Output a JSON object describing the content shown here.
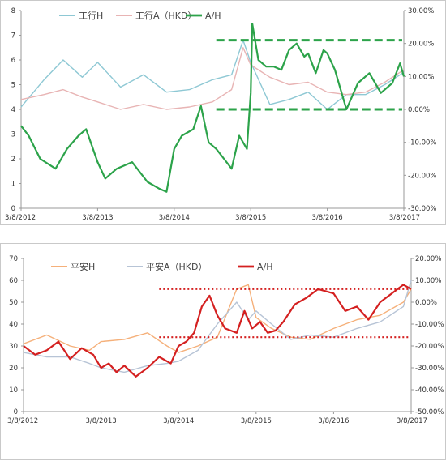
{
  "chart_data": [
    {
      "type": "line",
      "x_ticks": [
        "3/8/2012",
        "3/8/2013",
        "3/8/2014",
        "3/8/2015",
        "3/8/2016",
        "3/8/2017"
      ],
      "y_left": {
        "range": [
          0,
          8
        ],
        "ticks": [
          "0",
          "1",
          "2",
          "3",
          "4",
          "5",
          "6",
          "7",
          "8"
        ]
      },
      "y_right": {
        "range": [
          -30,
          30
        ],
        "ticks": [
          "-30.00%",
          "-20.00%",
          "-10.00%",
          "0.00%",
          "10.00%",
          "20.00%",
          "30.00%"
        ]
      },
      "legend_position": "top-left",
      "series": [
        {
          "name": "工行H",
          "axis": "left",
          "color": "#8ec8d4",
          "x": [
            2012.0,
            2012.3,
            2012.55,
            2012.8,
            2013.0,
            2013.3,
            2013.6,
            2013.9,
            2014.2,
            2014.5,
            2014.75,
            2014.9,
            2015.0,
            2015.25,
            2015.5,
            2015.75,
            2016.0,
            2016.25,
            2016.5,
            2016.75,
            2017.0
          ],
          "values": [
            4.1,
            5.2,
            6.0,
            5.3,
            5.9,
            4.9,
            5.4,
            4.7,
            4.8,
            5.2,
            5.4,
            6.8,
            5.9,
            4.2,
            4.4,
            4.7,
            4.0,
            4.6,
            4.6,
            5.0,
            5.5
          ]
        },
        {
          "name": "工行A（HKD）",
          "axis": "left",
          "color": "#e8b4b4",
          "x": [
            2012.0,
            2012.3,
            2012.55,
            2012.8,
            2013.0,
            2013.3,
            2013.6,
            2013.9,
            2014.2,
            2014.5,
            2014.75,
            2014.9,
            2015.0,
            2015.25,
            2015.5,
            2015.75,
            2016.0,
            2016.25,
            2016.5,
            2016.75,
            2017.0
          ],
          "values": [
            4.4,
            4.6,
            4.8,
            4.5,
            4.3,
            4.0,
            4.2,
            4.0,
            4.1,
            4.3,
            4.8,
            6.5,
            5.8,
            5.3,
            5.0,
            5.1,
            4.7,
            4.6,
            4.7,
            5.1,
            5.6
          ]
        },
        {
          "name": "A/H",
          "axis": "right",
          "color": "#2ca34a",
          "x": [
            2012.0,
            2012.1,
            2012.25,
            2012.45,
            2012.6,
            2012.75,
            2012.85,
            2013.0,
            2013.1,
            2013.25,
            2013.45,
            2013.65,
            2013.8,
            2013.9,
            2014.0,
            2014.1,
            2014.25,
            2014.35,
            2014.45,
            2014.55,
            2014.65,
            2014.75,
            2014.85,
            2014.95,
            2015.0,
            2015.02,
            2015.1,
            2015.2,
            2015.3,
            2015.4,
            2015.5,
            2015.6,
            2015.7,
            2015.75,
            2015.85,
            2015.95,
            2016.0,
            2016.1,
            2016.25,
            2016.4,
            2016.55,
            2016.7,
            2016.85,
            2016.95,
            2017.0
          ],
          "values": [
            -5,
            -8,
            -15,
            -18,
            -12,
            -8,
            -6,
            -16,
            -21,
            -18,
            -16,
            -22,
            -24,
            -25,
            -12,
            -8,
            -6,
            1,
            -10,
            -12,
            -15,
            -18,
            -8,
            -12,
            5,
            26,
            15,
            13,
            13,
            12,
            18,
            20,
            16,
            17,
            11,
            18,
            17,
            12,
            0,
            8,
            11,
            5,
            8,
            14,
            10
          ]
        }
      ],
      "reference_lines": [
        {
          "axis": "right",
          "value": 21,
          "color": "#2ca34a",
          "style": "dashed"
        },
        {
          "axis": "right",
          "value": 0,
          "color": "#2ca34a",
          "style": "dashed"
        }
      ]
    },
    {
      "type": "line",
      "x_ticks": [
        "3/8/2012",
        "3/8/2013",
        "3/8/2014",
        "3/8/2015",
        "3/8/2016",
        "3/8/2017"
      ],
      "y_left": {
        "range": [
          0,
          70
        ],
        "ticks": [
          "0",
          "10",
          "20",
          "30",
          "40",
          "50",
          "60",
          "70"
        ]
      },
      "y_right": {
        "range": [
          -50,
          20
        ],
        "ticks": [
          "-50.00%",
          "-40.00%",
          "-30.00%",
          "-20.00%",
          "-10.00%",
          "0.00%",
          "10.00%",
          "20.00%"
        ]
      },
      "legend_position": "top-left",
      "series": [
        {
          "name": "平安H",
          "axis": "left",
          "color": "#f5b07a",
          "x": [
            2012.0,
            2012.3,
            2012.6,
            2012.85,
            2013.0,
            2013.3,
            2013.6,
            2013.85,
            2014.0,
            2014.25,
            2014.5,
            2014.75,
            2014.9,
            2015.0,
            2015.2,
            2015.45,
            2015.7,
            2016.0,
            2016.3,
            2016.6,
            2016.9,
            2017.0
          ],
          "values": [
            31,
            35,
            30,
            28,
            32,
            33,
            36,
            30,
            27,
            30,
            34,
            56,
            58,
            43,
            38,
            34,
            33,
            38,
            42,
            44,
            50,
            56
          ]
        },
        {
          "name": "平安A（HKD）",
          "axis": "left",
          "color": "#b7c4d6",
          "x": [
            2012.0,
            2012.3,
            2012.6,
            2012.85,
            2013.0,
            2013.3,
            2013.6,
            2013.85,
            2014.0,
            2014.25,
            2014.5,
            2014.75,
            2014.9,
            2015.0,
            2015.2,
            2015.45,
            2015.7,
            2016.0,
            2016.3,
            2016.6,
            2016.9,
            2017.0
          ],
          "values": [
            27,
            25,
            25,
            22,
            20,
            18,
            21,
            22,
            23,
            28,
            40,
            50,
            42,
            46,
            40,
            33,
            35,
            34,
            38,
            41,
            48,
            60
          ]
        },
        {
          "name": "A/H",
          "axis": "right",
          "color": "#d42020",
          "x": [
            2012.0,
            2012.15,
            2012.3,
            2012.45,
            2012.6,
            2012.75,
            2012.9,
            2013.0,
            2013.1,
            2013.2,
            2013.3,
            2013.45,
            2013.6,
            2013.75,
            2013.9,
            2014.0,
            2014.1,
            2014.2,
            2014.3,
            2014.4,
            2014.5,
            2014.6,
            2014.75,
            2014.85,
            2014.95,
            2015.05,
            2015.15,
            2015.25,
            2015.35,
            2015.5,
            2015.65,
            2015.8,
            2016.0,
            2016.15,
            2016.3,
            2016.45,
            2016.6,
            2016.75,
            2016.9,
            2017.0
          ],
          "values": [
            -20,
            -24,
            -22,
            -18,
            -26,
            -21,
            -24,
            -30,
            -28,
            -32,
            -29,
            -34,
            -30,
            -25,
            -28,
            -20,
            -18,
            -14,
            -2,
            3,
            -6,
            -12,
            -14,
            -4,
            -12,
            -9,
            -14,
            -13,
            -9,
            -1,
            2,
            6,
            4,
            -4,
            -2,
            -8,
            0,
            4,
            8,
            6
          ]
        }
      ],
      "reference_lines": [
        {
          "axis": "right",
          "value": 6,
          "color": "#d42020",
          "style": "dotted"
        },
        {
          "axis": "right",
          "value": -16,
          "color": "#d42020",
          "style": "dotted"
        }
      ]
    }
  ]
}
